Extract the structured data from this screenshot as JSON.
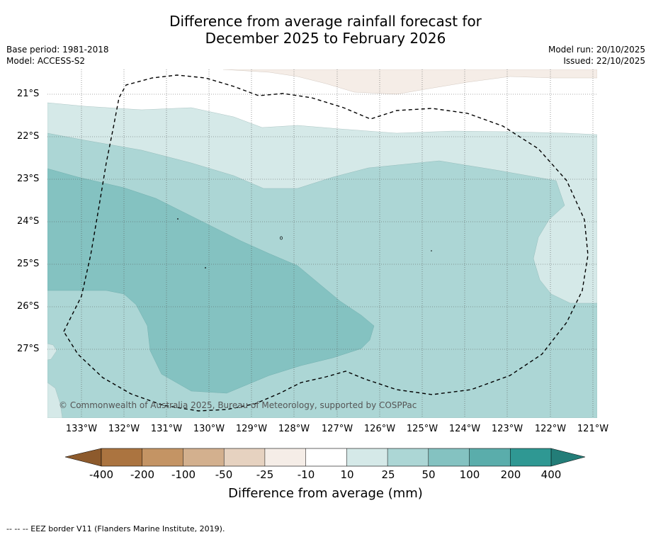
{
  "title": {
    "line1": "Difference from average rainfall forecast for",
    "line2": "December 2025 to February 2026"
  },
  "meta": {
    "base_period": "Base period: 1981-2018",
    "model": "Model: ACCESS-S2",
    "model_run": "Model run: 20/10/2025",
    "issued": "Issued: 22/10/2025"
  },
  "map": {
    "lat_labels": [
      "21°S",
      "22°S",
      "23°S",
      "24°S",
      "25°S",
      "26°S",
      "27°S"
    ],
    "lon_labels": [
      "133°W",
      "132°W",
      "131°W",
      "130°W",
      "129°W",
      "128°W",
      "127°W",
      "126°W",
      "125°W",
      "124°W",
      "123°W",
      "122°W",
      "121°W"
    ],
    "copyright": "© Commonwealth of Australia 2025, Bureau of Meteorology, supported by COSPPac",
    "colors": {
      "brown_light": "#f5ede7",
      "white": "#ffffff",
      "teal_10_25": "#d5e9e8",
      "teal_25_50": "#acd6d5",
      "teal_50_100": "#84c2c1",
      "teal_100_200": "#5aadab",
      "teal_200_400": "#2f9893"
    }
  },
  "colorbar": {
    "ticks": [
      "-400",
      "-200",
      "-100",
      "-50",
      "-25",
      "-10",
      "10",
      "25",
      "50",
      "100",
      "200",
      "400"
    ],
    "colors": [
      "#ab7440",
      "#c49464",
      "#d3b08e",
      "#e6d2c0",
      "#f5ede7",
      "#ffffff",
      "#d5e9e8",
      "#acd6d5",
      "#84c2c1",
      "#5aadab",
      "#2f9893"
    ],
    "under_color": "#8d5a2c",
    "over_color": "#237d78",
    "label": "Difference from average (mm)"
  },
  "footnote": "--  --  -- EEZ border V11 (Flanders Marine Institute, 2019)."
}
